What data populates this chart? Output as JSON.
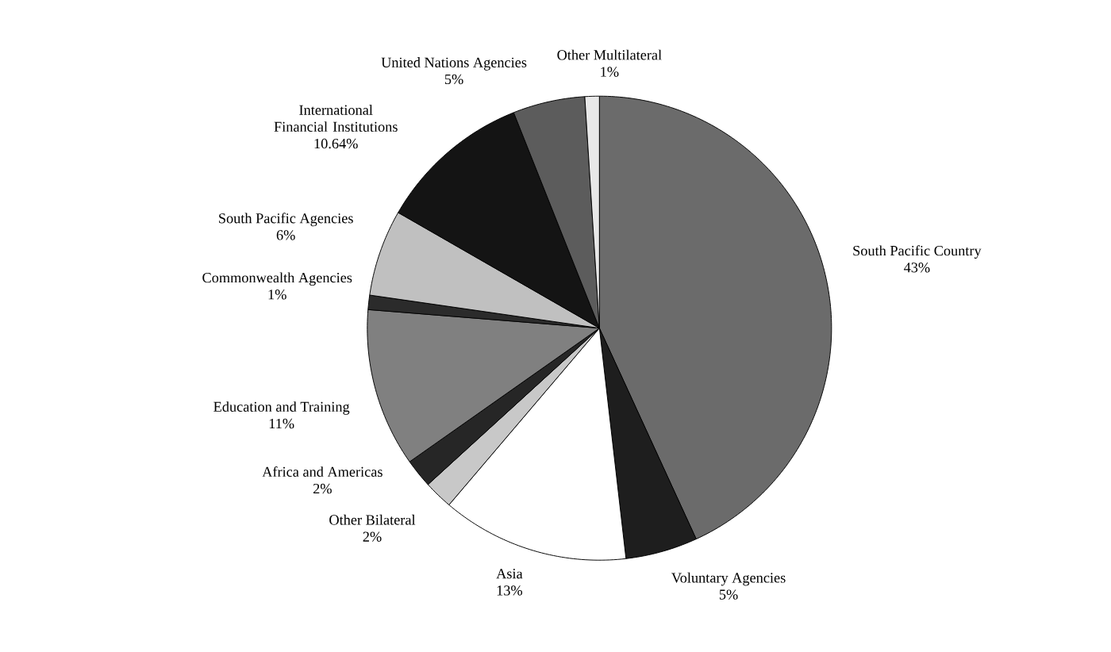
{
  "chart_data": {
    "type": "pie",
    "categories": [
      "South Pacific Country",
      "Voluntary Agencies",
      "Asia",
      "Other Bilateral",
      "Africa and Americas",
      "Education and Training",
      "Commonwealth Agencies",
      "South Pacific Agencies",
      "International Financial Institutions",
      "United Nations Agencies",
      "Other Multilateral"
    ],
    "values": [
      43,
      5,
      13,
      2,
      2,
      11,
      1,
      6,
      10.64,
      5,
      1
    ],
    "value_labels": [
      "43%",
      "5%",
      "13%",
      "2%",
      "2%",
      "11%",
      "1%",
      "6%",
      "10.64%",
      "5%",
      "1%"
    ],
    "colors": [
      "#6b6b6b",
      "#1e1e1e",
      "#ffffff",
      "#c8c8c8",
      "#262626",
      "#808080",
      "#2b2b2b",
      "#c0c0c0",
      "#141414",
      "#5c5c5c",
      "#e8e8e8"
    ]
  }
}
